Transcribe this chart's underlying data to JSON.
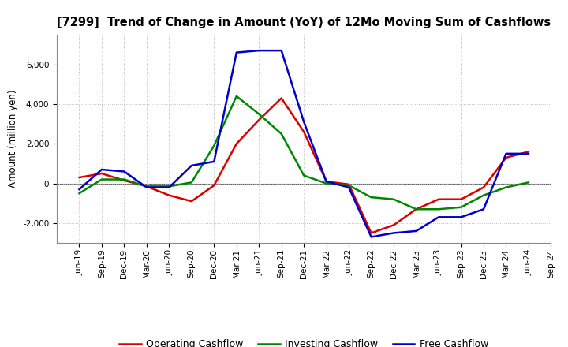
{
  "title": "[7299]  Trend of Change in Amount (YoY) of 12Mo Moving Sum of Cashflows",
  "ylabel": "Amount (million yen)",
  "x_labels": [
    "Jun-19",
    "Sep-19",
    "Dec-19",
    "Mar-20",
    "Jun-20",
    "Sep-20",
    "Dec-20",
    "Mar-21",
    "Jun-21",
    "Sep-21",
    "Dec-21",
    "Mar-22",
    "Jun-22",
    "Sep-22",
    "Dec-22",
    "Mar-23",
    "Jun-23",
    "Sep-23",
    "Dec-23",
    "Mar-24",
    "Jun-24",
    "Sep-24"
  ],
  "operating": [
    300,
    500,
    150,
    -150,
    -600,
    -900,
    -100,
    2000,
    3200,
    4300,
    2600,
    100,
    -50,
    -2500,
    -2100,
    -1300,
    -800,
    -800,
    -200,
    1300,
    1600,
    null
  ],
  "investing": [
    -500,
    200,
    200,
    -150,
    -150,
    50,
    1900,
    4400,
    3500,
    2500,
    400,
    0,
    -100,
    -700,
    -800,
    -1300,
    -1300,
    -1200,
    -600,
    -200,
    50,
    null
  ],
  "free": [
    -300,
    700,
    600,
    -200,
    -200,
    900,
    1100,
    6600,
    6700,
    6700,
    3100,
    100,
    -200,
    -2700,
    -2500,
    -2400,
    -1700,
    -1700,
    -1300,
    1500,
    1500,
    null
  ],
  "operating_color": "#dd0000",
  "investing_color": "#008800",
  "free_color": "#0000cc",
  "background_color": "#ffffff",
  "grid_color": "#bbbbbb",
  "ylim": [
    -3000,
    7500
  ],
  "yticks": [
    -2000,
    0,
    2000,
    4000,
    6000
  ],
  "legend_labels": [
    "Operating Cashflow",
    "Investing Cashflow",
    "Free Cashflow"
  ]
}
